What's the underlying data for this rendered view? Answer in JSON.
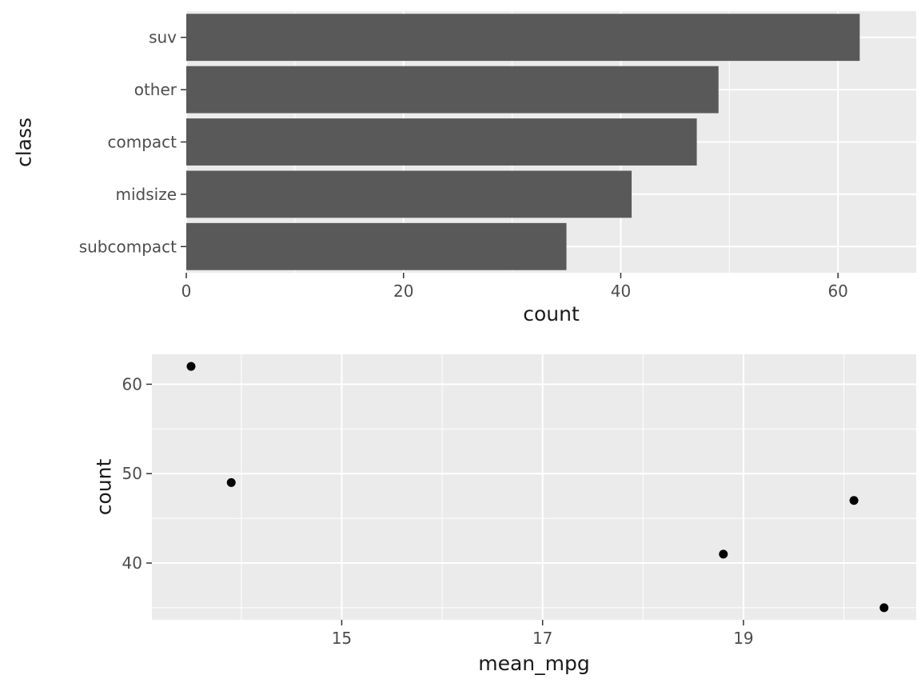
{
  "page": {
    "background": "#FFFFFF"
  },
  "theme": {
    "panel_background": "#EBEBEB",
    "grid_color": "#FFFFFF",
    "bar_color": "#595959",
    "point_color": "#000000",
    "tick_label_color": "#4D4D4D",
    "axis_title_color": "#1A1A1A",
    "tick_mark_color": "#333333"
  },
  "chart_data": [
    {
      "type": "bar",
      "orientation": "horizontal",
      "title": "",
      "categories": [
        "suv",
        "other",
        "compact",
        "midsize",
        "subcompact"
      ],
      "values": [
        62,
        49,
        47,
        41,
        35
      ],
      "xlabel": "count",
      "ylabel": "class",
      "xlim": [
        0,
        67.2
      ],
      "xticks": [
        0,
        20,
        40,
        60
      ],
      "xticks_minor": [
        10,
        30,
        50
      ],
      "grid": true,
      "legend": false,
      "bar_width_fraction": 0.9
    },
    {
      "type": "scatter",
      "title": "",
      "x": [
        13.5,
        13.9,
        18.8,
        20.1,
        20.4
      ],
      "y": [
        62,
        49,
        41,
        47,
        35
      ],
      "xlabel": "mean_mpg",
      "ylabel": "count",
      "xlim": [
        13.11,
        20.72
      ],
      "ylim": [
        33.65,
        63.35
      ],
      "xticks": [
        15,
        17,
        19
      ],
      "xticks_minor": [
        14,
        16,
        18,
        20
      ],
      "yticks": [
        40,
        50,
        60
      ],
      "yticks_minor": [
        35,
        45,
        55
      ],
      "grid": true,
      "legend": false,
      "point_radius": 5.5
    }
  ]
}
